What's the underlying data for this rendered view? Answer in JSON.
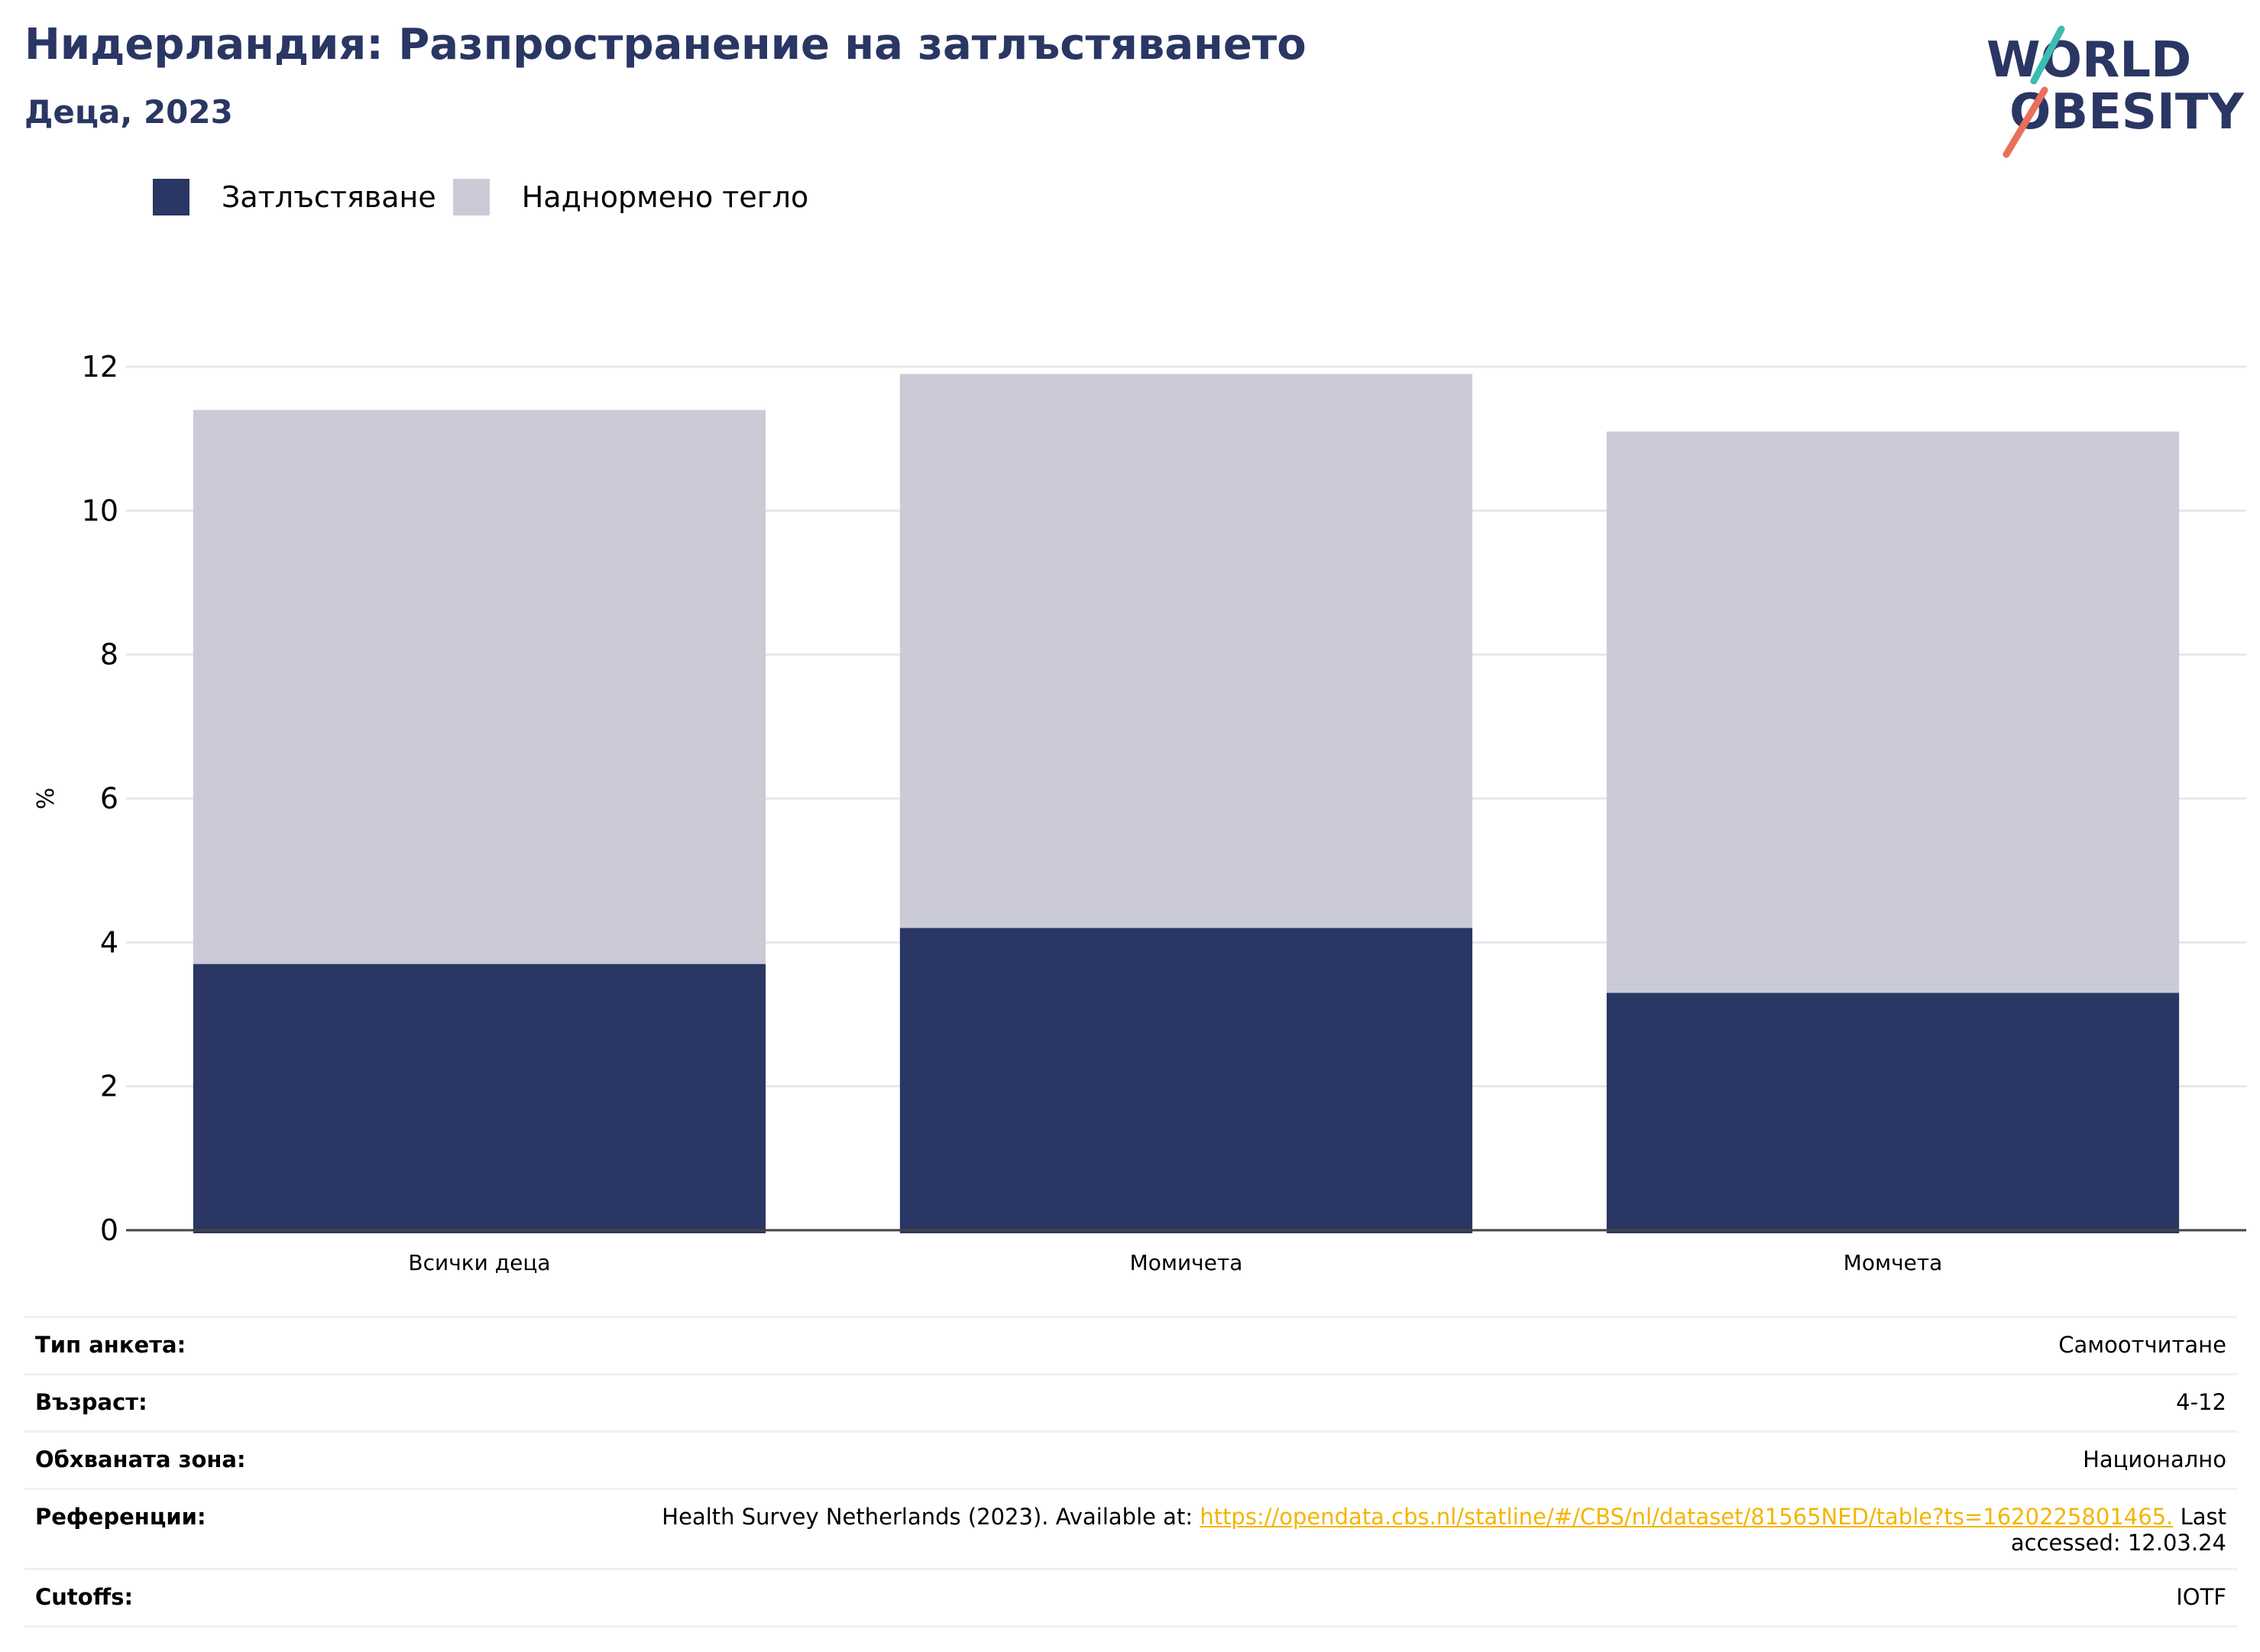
{
  "header": {
    "title": "Нидерландия: Разпространение на затлъстяването",
    "subtitle": "Деца, 2023"
  },
  "logo": {
    "line1": "WORLD",
    "line2": "OBESITY"
  },
  "legend": [
    {
      "label": "Затлъстяване",
      "color": "#2a3663"
    },
    {
      "label": "Наднормено тегло",
      "color": "#cacbd7"
    }
  ],
  "chart_data": {
    "type": "bar",
    "stacked": true,
    "categories": [
      "Всички деца",
      "Момичета",
      "Момчета"
    ],
    "series": [
      {
        "name": "Затлъстяване",
        "values": [
          3.7,
          4.2,
          3.3
        ],
        "color": "#2a3663"
      },
      {
        "name": "Наднормено тегло",
        "values": [
          7.7,
          7.7,
          7.8
        ],
        "color": "#cacbd7"
      }
    ],
    "ylabel": "%",
    "ylim": [
      0,
      12
    ],
    "yticks": [
      0,
      2,
      4,
      6,
      8,
      10,
      12
    ],
    "grid": true,
    "legend_position": "top-left"
  },
  "info": {
    "survey_type": {
      "key": "Тип анкета:",
      "value": "Самоотчитане"
    },
    "age": {
      "key": "Възраст:",
      "value": "4-12"
    },
    "area": {
      "key": "Обхваната зона:",
      "value": "Национално"
    },
    "references": {
      "key": "Референции:",
      "prefix": "Health Survey Netherlands (2023). Available at: ",
      "link": "https://opendata.cbs.nl/statline/#/CBS/nl/dataset/81565NED/table?ts=1620225801465.",
      "suffix": " Last accessed: 12.03.24"
    },
    "cutoffs": {
      "key": "Cutoffs:",
      "value": "IOTF"
    }
  }
}
